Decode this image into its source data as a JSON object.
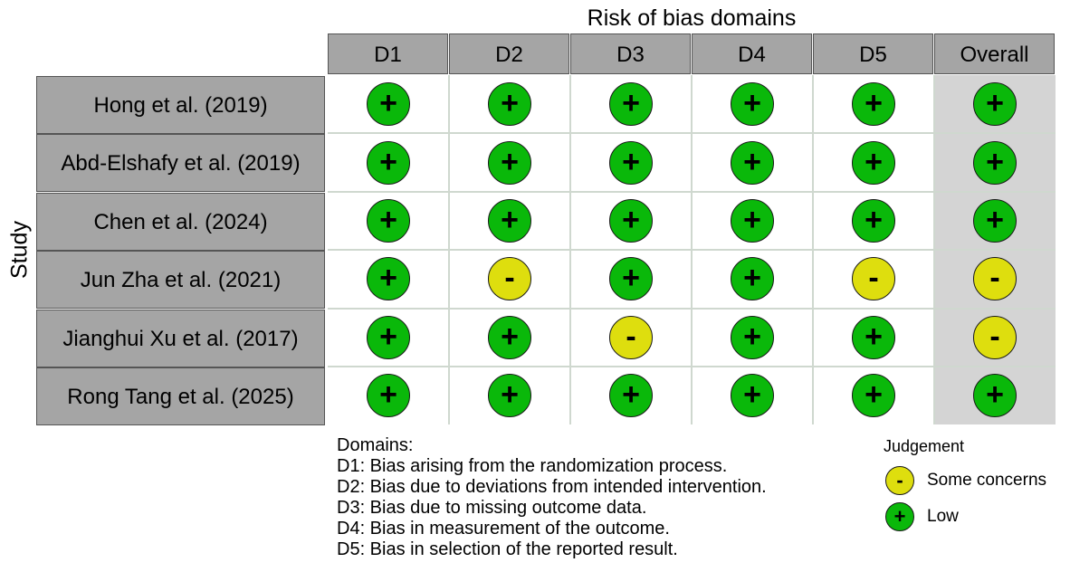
{
  "title": "Risk of bias domains",
  "y_label": "Study",
  "columns": [
    "D1",
    "D2",
    "D3",
    "D4",
    "D5",
    "Overall"
  ],
  "studies": [
    {
      "name": "Hong et al. (2019)",
      "judgements": [
        "low",
        "low",
        "low",
        "low",
        "low",
        "low"
      ]
    },
    {
      "name": "Abd-Elshafy et al. (2019)",
      "judgements": [
        "low",
        "low",
        "low",
        "low",
        "low",
        "low"
      ]
    },
    {
      "name": "Chen et al. (2024)",
      "judgements": [
        "low",
        "low",
        "low",
        "low",
        "low",
        "low"
      ]
    },
    {
      "name": "Jun Zha et al. (2021)",
      "judgements": [
        "low",
        "some",
        "low",
        "low",
        "some",
        "some"
      ]
    },
    {
      "name": "Jianghui Xu et al. (2017)",
      "judgements": [
        "low",
        "low",
        "some",
        "low",
        "low",
        "some"
      ]
    },
    {
      "name": "Rong Tang et al. (2025)",
      "judgements": [
        "low",
        "low",
        "low",
        "low",
        "low",
        "low"
      ]
    }
  ],
  "domains": {
    "heading": "Domains:",
    "items": [
      "D1: Bias arising from the randomization process.",
      "D2: Bias due to deviations from intended intervention.",
      "D3: Bias due to missing outcome data.",
      "D4: Bias in measurement of the outcome.",
      "D5: Bias in selection of the reported result."
    ]
  },
  "legend": {
    "title": "Judgement",
    "items": [
      {
        "key": "some",
        "symbol": "-",
        "label": "Some concerns",
        "color": "#dede0e"
      },
      {
        "key": "low",
        "symbol": "+",
        "label": "Low",
        "color": "#0ab80a"
      }
    ]
  },
  "colors": {
    "low": "#0ab80a",
    "some": "#dede0e",
    "header": "#a5a5a5",
    "overall_bg": "#d4d4d4"
  }
}
